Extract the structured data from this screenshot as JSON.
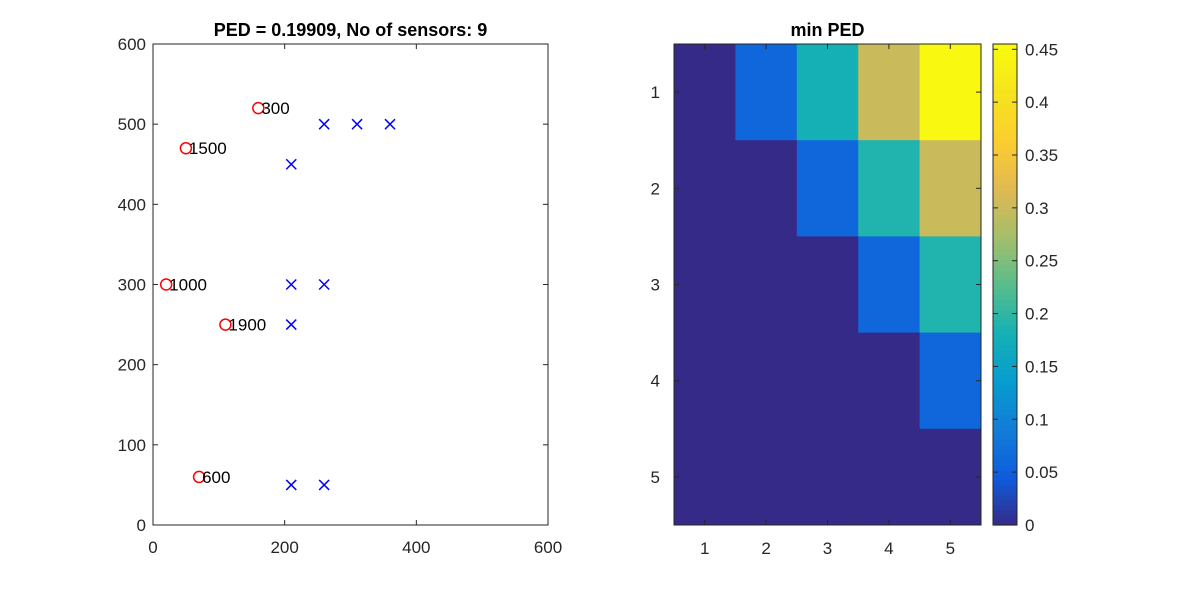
{
  "chart_data": [
    {
      "type": "scatter",
      "title": "PED = 0.19909, No of sensors: 9",
      "xlim": [
        0,
        600
      ],
      "ylim": [
        0,
        600
      ],
      "xticks": [
        0,
        200,
        400,
        600
      ],
      "yticks": [
        0,
        100,
        200,
        300,
        400,
        500,
        600
      ],
      "grid": false,
      "series": [
        {
          "marker": "circle",
          "color": "#ff0000",
          "points": [
            {
              "x": 160,
              "y": 520,
              "label": "300"
            },
            {
              "x": 50,
              "y": 470,
              "label": "1500"
            },
            {
              "x": 20,
              "y": 300,
              "label": "1000"
            },
            {
              "x": 110,
              "y": 250,
              "label": "1900"
            },
            {
              "x": 70,
              "y": 60,
              "label": "600"
            }
          ]
        },
        {
          "marker": "x",
          "color": "#0000ff",
          "points": [
            {
              "x": 260,
              "y": 500
            },
            {
              "x": 310,
              "y": 500
            },
            {
              "x": 360,
              "y": 500
            },
            {
              "x": 210,
              "y": 450
            },
            {
              "x": 210,
              "y": 300
            },
            {
              "x": 260,
              "y": 300
            },
            {
              "x": 210,
              "y": 250
            },
            {
              "x": 210,
              "y": 50
            },
            {
              "x": 260,
              "y": 50
            }
          ]
        }
      ]
    },
    {
      "type": "heatmap",
      "title": "min PED",
      "x_categories": [
        "1",
        "2",
        "3",
        "4",
        "5"
      ],
      "y_categories": [
        "1",
        "2",
        "3",
        "4",
        "5"
      ],
      "values": [
        [
          0,
          0.06,
          0.18,
          0.3,
          0.45
        ],
        [
          0,
          0,
          0.06,
          0.19,
          0.3
        ],
        [
          0,
          0,
          0,
          0.06,
          0.19
        ],
        [
          0,
          0,
          0,
          0,
          0.06
        ],
        [
          0,
          0,
          0,
          0,
          0
        ]
      ],
      "colormap": "parula",
      "clim": [
        0,
        0.455
      ],
      "colorbar_ticks": [
        "0",
        "0.05",
        "0.1",
        "0.15",
        "0.2",
        "0.25",
        "0.3",
        "0.35",
        "0.4",
        "0.45"
      ],
      "colorbar_tick_values": [
        0,
        0.05,
        0.1,
        0.15,
        0.2,
        0.25,
        0.3,
        0.35,
        0.4,
        0.45
      ]
    }
  ]
}
